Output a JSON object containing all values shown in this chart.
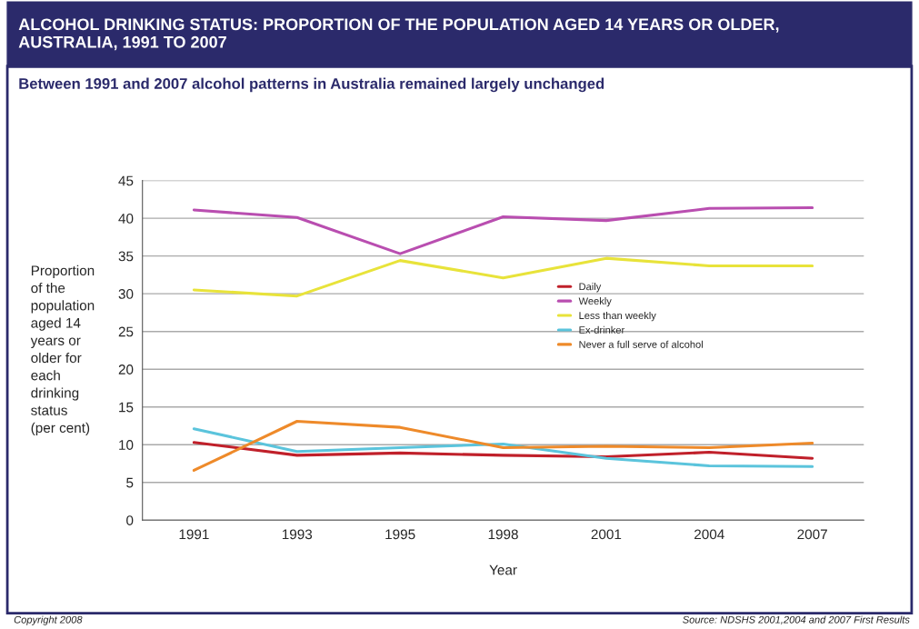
{
  "chart_data": {
    "type": "line",
    "title": "ALCOHOL DRINKING STATUS: PROPORTION OF THE POPULATION AGED 14 YEARS OR OLDER,\nAUSTRALIA, 1991 TO 2007",
    "subtitle": "Between 1991 and 2007 alcohol patterns in Australia remained largely unchanged",
    "xlabel": "Year",
    "ylabel": "Proportion\nof the\npopulation\naged 14\nyears or\nolder for\neach\ndrinking\nstatus\n(per cent)",
    "categories": [
      "1991",
      "1993",
      "1995",
      "1998",
      "2001",
      "2004",
      "2007"
    ],
    "series": [
      {
        "name": "Daily",
        "color": "#c0202a",
        "values": [
          10.3,
          8.6,
          8.9,
          8.6,
          8.4,
          9.0,
          8.2
        ]
      },
      {
        "name": "Weekly",
        "color": "#b94eb0",
        "values": [
          41.1,
          40.1,
          35.3,
          40.2,
          39.7,
          41.3,
          41.4
        ]
      },
      {
        "name": "Less than weekly",
        "color": "#e8e33a",
        "values": [
          30.5,
          29.7,
          34.4,
          32.1,
          34.7,
          33.7,
          33.7
        ]
      },
      {
        "name": "Ex-drinker",
        "color": "#5bc4dc",
        "values": [
          12.1,
          9.1,
          9.6,
          10.1,
          8.2,
          7.2,
          7.1
        ]
      },
      {
        "name": "Never a full serve of alcohol",
        "color": "#ee8a2a",
        "values": [
          6.6,
          13.1,
          12.3,
          9.6,
          9.8,
          9.6,
          10.2
        ]
      }
    ],
    "ylim": [
      0,
      45
    ],
    "yticks": [
      0,
      5,
      10,
      15,
      20,
      25,
      30,
      35,
      40,
      45
    ],
    "grid": "y",
    "legend": "right",
    "annotations": [
      "Copyright 2008",
      "Source: NDSHS 2001,2004 and 2007 First Results"
    ]
  }
}
